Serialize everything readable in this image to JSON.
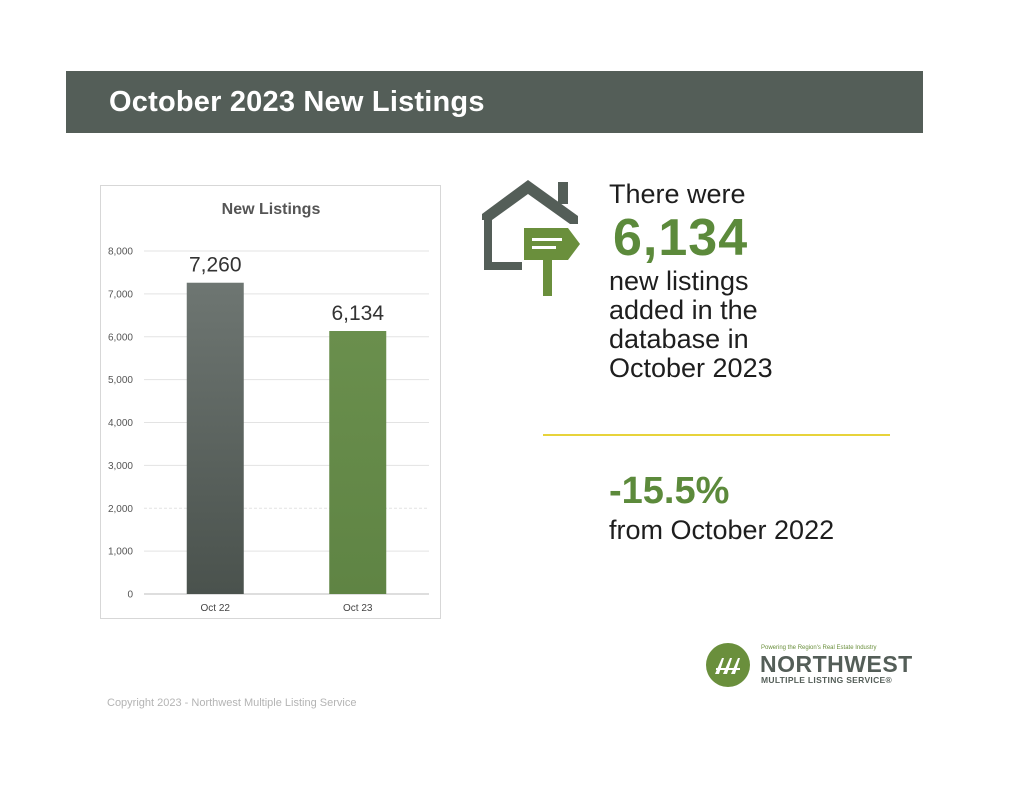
{
  "header": {
    "title": "October 2023 New Listings"
  },
  "chart_data": {
    "type": "bar",
    "title": "New Listings",
    "categories": [
      "Oct 22",
      "Oct 23"
    ],
    "values": [
      7260,
      6134
    ],
    "data_labels": [
      "7,260",
      "6,134"
    ],
    "ylim": [
      0,
      8000
    ],
    "yticks": [
      0,
      1000,
      2000,
      3000,
      4000,
      5000,
      6000,
      7000,
      8000
    ],
    "ytick_labels": [
      "0",
      "1,000",
      "2,000",
      "3,000",
      "4,000",
      "5,000",
      "6,000",
      "7,000",
      "8,000"
    ],
    "bar_colors": [
      "#5f6763",
      "#66894a"
    ],
    "grid": true,
    "xlabel": "",
    "ylabel": ""
  },
  "stat": {
    "line1": "There were",
    "number": "6,134",
    "lines": [
      "new listings",
      "added in the",
      "database in",
      "October 2023"
    ],
    "icon": "house-with-sign-icon"
  },
  "change": {
    "value": "-15.5%",
    "label": "from October 2022"
  },
  "logo": {
    "tagline": "Powering the Region's Real Estate Industry",
    "name": "NORTHWEST",
    "subtitle": "MULTIPLE LISTING SERVICE®"
  },
  "footer": {
    "copyright": "Copyright 2023 - Northwest Multiple Listing Service"
  },
  "colors": {
    "title_bar": "#545e58",
    "accent_green": "#5c8a3b",
    "divider": "#e7d33b"
  }
}
